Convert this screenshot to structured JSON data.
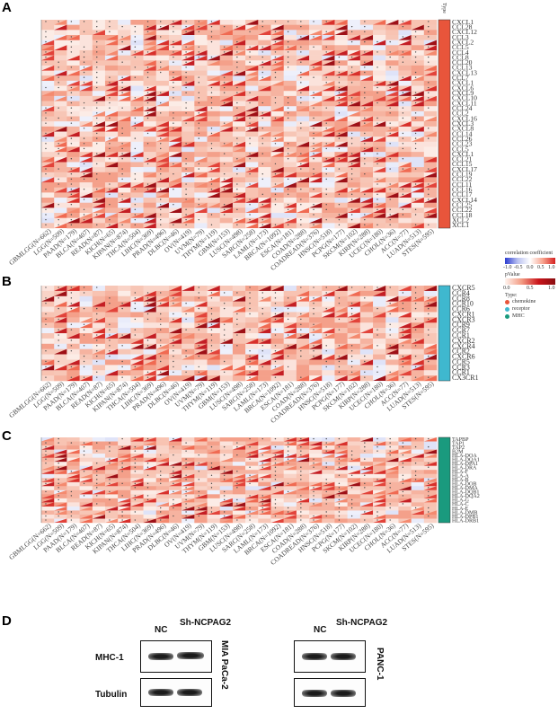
{
  "panel_labels": [
    "A",
    "B",
    "C",
    "D"
  ],
  "cancer_types": [
    "GBMLGG(N=662)",
    "LGG(N=509)",
    "PAAD(N=179)",
    "BLCA(N=407)",
    "READ(N=87)",
    "KICH(N=65)",
    "KIPAN(N=874)",
    "THCA(N=504)",
    "LIHC(N=369)",
    "PRAD(N=496)",
    "DLBC(N=46)",
    "OV(N=419)",
    "UVM(N=79)",
    "THYM(N=119)",
    "GBM(N=153)",
    "LUSC(N=498)",
    "SARC(N=258)",
    "LAML(N=173)",
    "BRCA(N=1092)",
    "ESCA(N=181)",
    "COAD(N=288)",
    "COADREAD(N=376)",
    "HNSC(N=518)",
    "PCPG(N=177)",
    "SKCM(N=102)",
    "KIRP(N=288)",
    "UCEC(N=180)",
    "CHOL(N=36)",
    "ACC(N=77)",
    "LUAD(N=513)",
    "STES(N=595)"
  ],
  "legend": {
    "corr_title": "correlation coefficient",
    "corr_ticks": [
      "-1.0",
      "-0.5",
      "0.0",
      "0.5",
      "1.0"
    ],
    "p_title": "pValue",
    "p_ticks": [
      "0.0",
      "0.5",
      "1.0"
    ],
    "type_title": "Type:",
    "types": [
      {
        "label": "chemokine",
        "color": "#e8553b"
      },
      {
        "label": "receptor",
        "color": "#3fb8cf"
      },
      {
        "label": "MHC",
        "color": "#1a9a7e"
      }
    ]
  },
  "type_header": "Type",
  "panels": {
    "A": {
      "type_color": "#e8553b",
      "genes": [
        "CXCL1",
        "CCL28",
        "CXCL12",
        "CCL3",
        "CXCL2",
        "CCL5",
        "CCL4",
        "CCL8",
        "CCL20",
        "CCL13",
        "CXCL13",
        "CCL7",
        "CXCL1",
        "CXCL6",
        "CXCL9",
        "CXCL10",
        "CXCL11",
        "CCL24",
        "CCL2",
        "CXCL16",
        "CXCL3",
        "CXCL8",
        "CCL14",
        "CCL26",
        "CCL23",
        "CCL5",
        "CXCL1",
        "CCL21",
        "CCL15",
        "CXCL17",
        "CCL19",
        "CCL22",
        "CCL11",
        "CCL16",
        "CCL17",
        "CXCL14",
        "CCL25",
        "CCL22",
        "CCL18",
        "XCL2",
        "XCL1"
      ]
    },
    "B": {
      "type_color": "#3fb8cf",
      "genes": [
        "CXCR5",
        "CCR4",
        "CCR8",
        "CCR10",
        "CCR6",
        "CXCR1",
        "CXCR3",
        "CCR9",
        "CCR7",
        "CCR1",
        "CXCR2",
        "CXCR4",
        "CCR2",
        "CXCR6",
        "CCR5",
        "CCR3",
        "CCR1",
        "CX3CR1"
      ]
    },
    "C": {
      "type_color": "#1a9a7e",
      "genes": [
        "TAPBP",
        "TAP1",
        "TAP2",
        "B2M",
        "HLA-DOA",
        "HLA-DQA1",
        "HLA-DPA1",
        "HLA-DRA",
        "HLA-F",
        "HLA-A",
        "HLA-B",
        "HLA-DOB",
        "HLA-DMA",
        "HLA-DQB1",
        "HLA-DQA2",
        "HLA-G",
        "HLA-C",
        "HLA-E",
        "HLA-DMB",
        "HLA-DPB1",
        "HLA-DRB1"
      ]
    }
  },
  "western_blot": {
    "left": {
      "cell_line": "MIA PaCa-2",
      "lanes": [
        "NC",
        "Sh-NCPAG2"
      ]
    },
    "right": {
      "cell_line": "PANC-1",
      "lanes": [
        "NC",
        "Sh-NCPAG2"
      ]
    },
    "rows": [
      "MHC-1",
      "Tubulin"
    ]
  }
}
